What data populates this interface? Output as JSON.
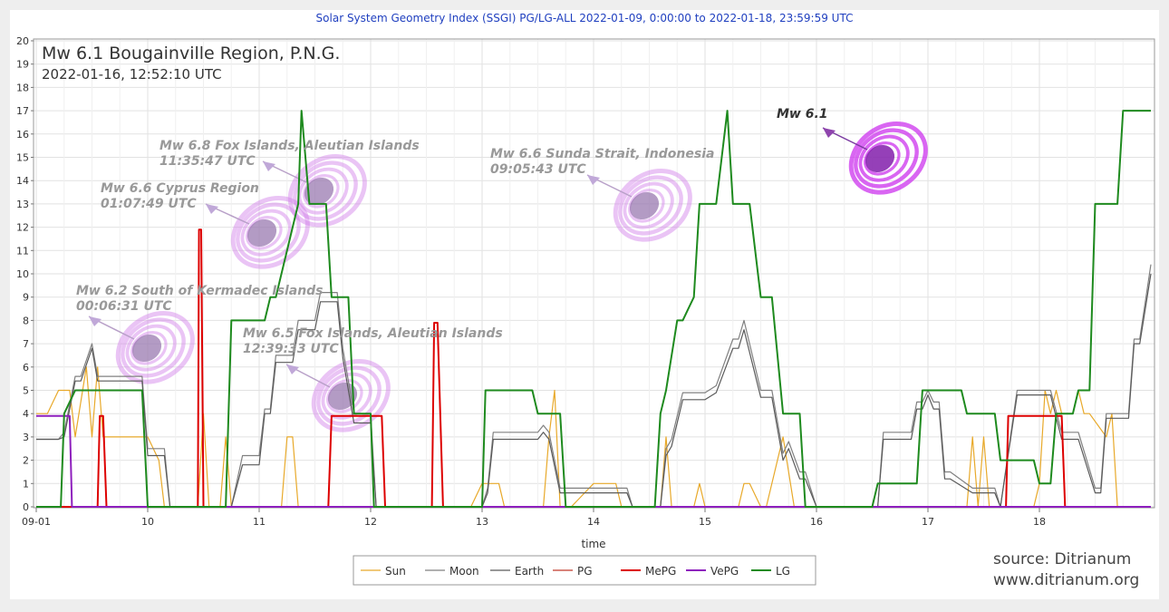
{
  "header": "Solar System Geometry Index (SSGI) PG/LG-ALL 2022-01-09,  0:00:00 to 2022-01-18, 23:59:59 UTC",
  "event": {
    "title": "Mw 6.1 Bougainville Region, P.N.G.",
    "datetime": "2022-01-16, 12:52:10 UTC"
  },
  "source": {
    "line1": "source: Ditrianum",
    "line2": "www.ditrianum.org"
  },
  "chart_data": {
    "type": "line",
    "xlabel": "time",
    "xlim": [
      0,
      10
    ],
    "ylim": [
      0,
      20
    ],
    "x_ticks": [
      {
        "x": 0,
        "label": "09-01"
      },
      {
        "x": 1,
        "label": "10"
      },
      {
        "x": 2,
        "label": "11"
      },
      {
        "x": 3,
        "label": "12"
      },
      {
        "x": 4,
        "label": "13"
      },
      {
        "x": 5,
        "label": "14"
      },
      {
        "x": 6,
        "label": "15"
      },
      {
        "x": 7,
        "label": "16"
      },
      {
        "x": 8,
        "label": "17"
      },
      {
        "x": 9,
        "label": "18"
      }
    ],
    "y_ticks": [
      0,
      1,
      2,
      3,
      4,
      5,
      6,
      7,
      8,
      9,
      10,
      11,
      12,
      13,
      14,
      15,
      16,
      17,
      18,
      19,
      20
    ],
    "grid": true,
    "legend_position": "bottom",
    "series": [
      {
        "name": "Sun",
        "color": "#e8a92a",
        "x": [
          0,
          0.1,
          0.2,
          0.3,
          0.35,
          0.45,
          0.5,
          0.55,
          0.6,
          0.65,
          0.7,
          0.8,
          1.0,
          1.1,
          1.15,
          1.45,
          1.5,
          1.55,
          1.65,
          1.7,
          1.75,
          1.8,
          2.2,
          2.25,
          2.3,
          2.35,
          3.0,
          3.7,
          3.9,
          4.0,
          4.05,
          4.15,
          4.2,
          4.25,
          4.3,
          4.5,
          4.55,
          4.6,
          4.65,
          4.7,
          4.8,
          5.0,
          5.2,
          5.25,
          5.3,
          5.35,
          5.6,
          5.65,
          5.7,
          5.75,
          5.8,
          5.9,
          5.95,
          6.0,
          6.3,
          6.35,
          6.4,
          6.5,
          6.55,
          6.7,
          6.8,
          6.9,
          7.0,
          8.1,
          8.35,
          8.4,
          8.45,
          8.5,
          8.55,
          8.6,
          8.95,
          9.0,
          9.05,
          9.1,
          9.15,
          9.2,
          9.3,
          9.35,
          9.4,
          9.45,
          9.6,
          9.65,
          9.7,
          10
        ],
        "y": [
          4,
          4,
          5,
          5,
          3,
          6,
          3,
          6,
          3,
          3,
          3,
          3,
          3,
          2,
          0,
          0,
          4,
          0,
          0,
          3,
          0,
          0,
          0,
          3,
          3,
          0,
          0,
          0,
          0,
          1,
          1,
          1,
          0,
          0,
          0,
          0,
          0,
          3,
          5,
          0,
          0,
          1,
          1,
          0,
          0,
          0,
          0,
          3,
          0,
          0,
          0,
          0,
          1,
          0,
          0,
          1,
          1,
          0,
          0,
          3,
          0,
          0,
          0,
          0,
          0,
          3,
          0,
          3,
          0,
          0,
          0,
          1,
          5,
          4,
          5,
          4,
          4,
          5,
          4,
          4,
          3,
          4,
          0,
          0
        ]
      },
      {
        "name": "Moon",
        "color": "#808080",
        "x": [
          0,
          0.2,
          0.25,
          0.35,
          0.4,
          0.5,
          0.55,
          0.6,
          0.7,
          0.95,
          1.0,
          1.15,
          1.2,
          1.25,
          1.45,
          1.7,
          1.75,
          1.85,
          2.0,
          2.05,
          2.1,
          2.15,
          2.3,
          2.35,
          2.4,
          2.45,
          2.5,
          2.55,
          2.7,
          2.75,
          2.85,
          2.9,
          3.0,
          3.05,
          4.0,
          4.05,
          4.1,
          4.5,
          4.55,
          4.6,
          4.7,
          5.0,
          5.2,
          5.3,
          5.35,
          5.45,
          5.6,
          5.65,
          5.7,
          5.8,
          5.9,
          6.0,
          6.1,
          6.25,
          6.3,
          6.35,
          6.5,
          6.6,
          6.7,
          6.75,
          6.85,
          6.9,
          7.0,
          7.5,
          7.55,
          7.6,
          7.85,
          7.9,
          7.95,
          8.0,
          8.05,
          8.1,
          8.15,
          8.2,
          8.4,
          8.45,
          8.6,
          8.65,
          8.8,
          8.9,
          9.05,
          9.1,
          9.2,
          9.3,
          9.35,
          9.5,
          9.55,
          9.6,
          9.65,
          9.8,
          9.85,
          9.9,
          10
        ],
        "y": [
          2.9,
          2.9,
          3.2,
          5.6,
          5.6,
          7.0,
          5.6,
          5.6,
          5.6,
          5.6,
          2.5,
          2.5,
          0,
          0,
          0,
          0,
          0,
          2.2,
          2.2,
          4.2,
          4.2,
          6.5,
          6.5,
          8.0,
          8.0,
          8.0,
          8.0,
          9.2,
          9.2,
          6.8,
          4.0,
          4.0,
          4.0,
          0,
          0,
          0.8,
          3.2,
          3.2,
          3.5,
          3.2,
          0.8,
          0.8,
          0.8,
          0.8,
          0,
          0,
          0,
          2.5,
          2.9,
          4.9,
          4.9,
          4.9,
          5.2,
          7.2,
          7.2,
          8.0,
          5.0,
          5.0,
          2.3,
          2.8,
          1.5,
          1.5,
          0,
          0,
          0,
          3.2,
          3.2,
          4.5,
          4.5,
          5.0,
          4.5,
          4.5,
          1.5,
          1.5,
          0.8,
          0.8,
          0.8,
          0,
          5.0,
          5.0,
          5.0,
          5.0,
          3.2,
          3.2,
          3.2,
          0.8,
          0.8,
          4.0,
          4.0,
          4.0,
          7.2,
          7.2,
          10.4
        ]
      },
      {
        "name": "Earth",
        "color": "#5a5a5a",
        "x": [
          0,
          0.2,
          0.25,
          0.35,
          0.4,
          0.5,
          0.55,
          0.6,
          0.7,
          0.95,
          1.0,
          1.15,
          1.2,
          1.25,
          1.45,
          1.7,
          1.75,
          1.85,
          2.0,
          2.05,
          2.1,
          2.15,
          2.3,
          2.35,
          2.4,
          2.45,
          2.5,
          2.55,
          2.7,
          2.75,
          2.85,
          2.9,
          3.0,
          3.05,
          4.0,
          4.05,
          4.1,
          4.5,
          4.55,
          4.6,
          4.7,
          5.0,
          5.2,
          5.3,
          5.35,
          5.45,
          5.6,
          5.65,
          5.7,
          5.8,
          5.9,
          6.0,
          6.1,
          6.25,
          6.3,
          6.35,
          6.5,
          6.6,
          6.7,
          6.75,
          6.85,
          6.9,
          7.0,
          7.5,
          7.55,
          7.6,
          7.85,
          7.9,
          7.95,
          8.0,
          8.05,
          8.1,
          8.15,
          8.2,
          8.4,
          8.45,
          8.6,
          8.65,
          8.8,
          8.9,
          9.05,
          9.1,
          9.2,
          9.3,
          9.35,
          9.5,
          9.55,
          9.6,
          9.65,
          9.8,
          9.85,
          9.9,
          10
        ],
        "y": [
          2.9,
          2.9,
          3.0,
          5.4,
          5.4,
          6.8,
          5.4,
          5.4,
          5.4,
          5.4,
          2.2,
          2.2,
          0,
          0,
          0,
          0,
          0,
          1.8,
          1.8,
          4.0,
          4.0,
          6.2,
          6.2,
          7.6,
          7.6,
          7.6,
          7.6,
          8.8,
          8.8,
          6.4,
          3.6,
          3.6,
          3.6,
          0,
          0,
          0.6,
          2.9,
          2.9,
          3.2,
          2.9,
          0.6,
          0.6,
          0.6,
          0.6,
          0,
          0,
          0,
          2.2,
          2.6,
          4.6,
          4.6,
          4.6,
          4.9,
          6.8,
          6.8,
          7.6,
          4.7,
          4.7,
          2.0,
          2.5,
          1.2,
          1.2,
          0,
          0,
          0,
          2.9,
          2.9,
          4.2,
          4.2,
          4.8,
          4.2,
          4.2,
          1.2,
          1.2,
          0.6,
          0.6,
          0.6,
          0,
          4.8,
          4.8,
          4.8,
          4.8,
          2.9,
          2.9,
          2.9,
          0.6,
          0.6,
          3.8,
          3.8,
          3.8,
          7.0,
          7.0,
          10.0
        ]
      },
      {
        "name": "PG",
        "color": "#c0392b",
        "x": [
          0,
          10
        ],
        "y": [
          0,
          0
        ]
      },
      {
        "name": "MePG",
        "color": "#dd0000",
        "x": [
          0,
          0.55,
          0.57,
          0.6,
          0.63,
          1.45,
          1.46,
          1.48,
          1.5,
          2.62,
          2.65,
          3.1,
          3.13,
          3.55,
          3.57,
          3.6,
          3.65,
          8.7,
          8.72,
          9.2,
          9.23,
          10
        ],
        "y": [
          0,
          0,
          3.9,
          3.9,
          0,
          0,
          11.9,
          11.9,
          0,
          0,
          3.9,
          3.9,
          0,
          0,
          7.9,
          7.9,
          0,
          0,
          3.9,
          3.9,
          0,
          0
        ]
      },
      {
        "name": "VePG",
        "color": "#8e1fbd",
        "x": [
          0,
          0.3,
          0.32,
          10
        ],
        "y": [
          3.9,
          3.9,
          0,
          0
        ]
      },
      {
        "name": "LG",
        "color": "#1e8a1e",
        "x": [
          0,
          0.22,
          0.25,
          0.35,
          0.4,
          0.95,
          1.0,
          1.7,
          1.75,
          1.8,
          2.05,
          2.1,
          2.15,
          2.35,
          2.38,
          2.45,
          2.6,
          2.65,
          2.8,
          2.85,
          3.0,
          3.03,
          4.0,
          4.03,
          4.45,
          4.5,
          4.7,
          4.75,
          5.55,
          5.6,
          5.65,
          5.75,
          5.8,
          5.9,
          5.95,
          6.1,
          6.2,
          6.25,
          6.4,
          6.5,
          6.6,
          6.7,
          6.85,
          6.9,
          7.5,
          7.55,
          7.9,
          7.95,
          8.3,
          8.35,
          8.6,
          8.65,
          8.95,
          9.0,
          9.1,
          9.15,
          9.3,
          9.35,
          9.45,
          9.5,
          9.7,
          9.75,
          9.95,
          10
        ],
        "y": [
          0,
          0,
          4,
          5,
          5,
          5,
          0,
          0,
          8,
          8,
          8,
          9,
          9,
          13,
          17,
          13,
          13,
          9,
          9,
          4,
          4,
          0,
          0,
          5,
          5,
          4,
          4,
          0,
          0,
          4,
          5,
          8,
          8,
          9,
          13,
          13,
          17,
          13,
          13,
          9,
          9,
          4,
          4,
          0,
          0,
          1,
          1,
          5,
          5,
          4,
          4,
          2,
          2,
          1,
          1,
          4,
          4,
          5,
          5,
          13,
          13,
          17,
          17,
          17
        ]
      }
    ],
    "annotations": [
      {
        "label": "Mw 6.2 South of Kermadec Islands",
        "time": "00:06:31 UTC"
      },
      {
        "label": "Mw 6.6 Cyprus Region",
        "time": "01:07:49 UTC"
      },
      {
        "label": "Mw 6.8 Fox Islands, Aleutian Islands",
        "time": "11:35:47 UTC"
      },
      {
        "label": "Mw 6.5 Fox Islands, Aleutian Islands",
        "time": "12:39:33 UTC"
      },
      {
        "label": "Mw 6.6 Sunda Strait, Indonesia",
        "time": "09:05:43 UTC"
      },
      {
        "label": "Mw 6.1",
        "time": ""
      }
    ]
  }
}
